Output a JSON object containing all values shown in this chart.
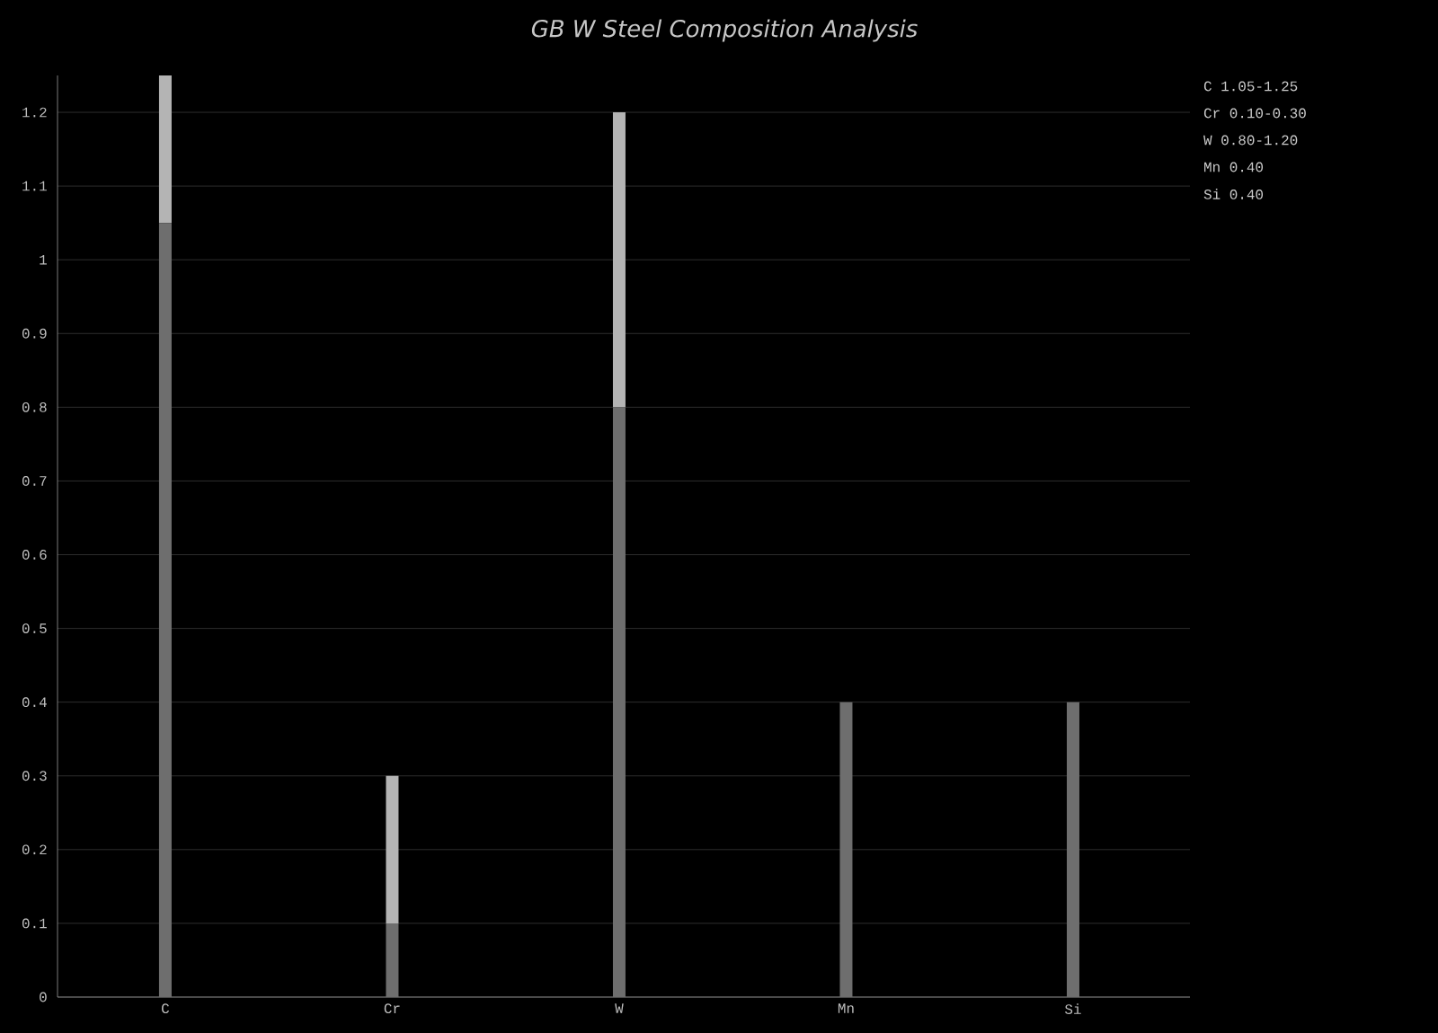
{
  "chart_data": {
    "type": "bar",
    "title": "GB W Steel Composition Analysis",
    "categories": [
      "C",
      "Cr",
      "W",
      "Mn",
      "Si"
    ],
    "stacked": true,
    "series": [
      {
        "color": "#6e6e6e",
        "values": [
          1.05,
          0.1,
          0.8,
          0.4,
          0.4
        ]
      },
      {
        "color": "#b4b4b4",
        "values": [
          0.2,
          0.2,
          0.4,
          null,
          null
        ]
      }
    ],
    "ylim": [
      0,
      1.25
    ],
    "yticks": [
      0,
      0.1,
      0.2,
      0.3,
      0.4,
      0.5,
      0.6,
      0.7,
      0.8,
      0.9,
      1,
      1.1,
      1.2
    ],
    "grid": "y",
    "annotations": [
      "C  1.05-1.25",
      "Cr 0.10-0.30",
      "W  0.80-1.20",
      "Mn 0.40",
      "Si 0.40"
    ]
  }
}
